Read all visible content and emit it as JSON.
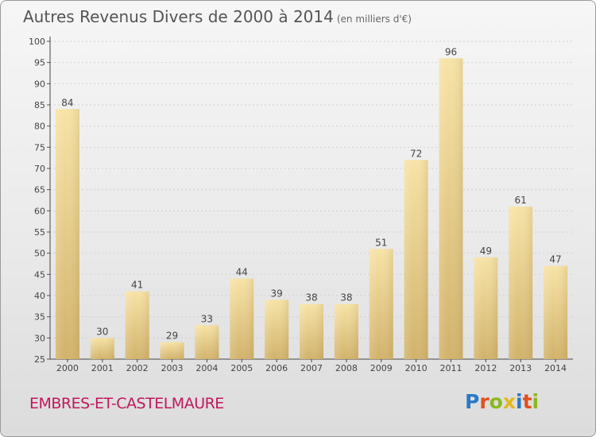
{
  "title": "Autres Revenus Divers de 2000 à 2014",
  "subtitle": "(en milliers d'€)",
  "commune": "EMBRES-ET-CASTELMAURE",
  "logo": {
    "letters": [
      "P",
      "r",
      "o",
      "x",
      "i",
      "t",
      "i"
    ],
    "colors": [
      "#2a79c4",
      "#e0501c",
      "#8cb820",
      "#e3b81c",
      "#2a79c4",
      "#e0501c",
      "#8cb820"
    ]
  },
  "colors": {
    "bar_light": "#f7e3a6",
    "bar_dark": "#d1b26a",
    "commune": "#c0185e"
  },
  "chart_data": {
    "type": "bar",
    "title": "Autres Revenus Divers de 2000 à 2014",
    "subtitle": "(en milliers d'€)",
    "xlabel": "",
    "ylabel": "",
    "categories": [
      "2000",
      "2001",
      "2002",
      "2003",
      "2004",
      "2005",
      "2006",
      "2007",
      "2008",
      "2009",
      "2010",
      "2011",
      "2012",
      "2013",
      "2014"
    ],
    "values": [
      84,
      30,
      41,
      29,
      33,
      44,
      39,
      38,
      38,
      51,
      72,
      96,
      49,
      61,
      47
    ],
    "ylim": [
      25,
      100
    ],
    "yticks": [
      25,
      30,
      35,
      40,
      45,
      50,
      55,
      60,
      65,
      70,
      75,
      80,
      85,
      90,
      95,
      100
    ],
    "grid": true,
    "legend": "none"
  }
}
